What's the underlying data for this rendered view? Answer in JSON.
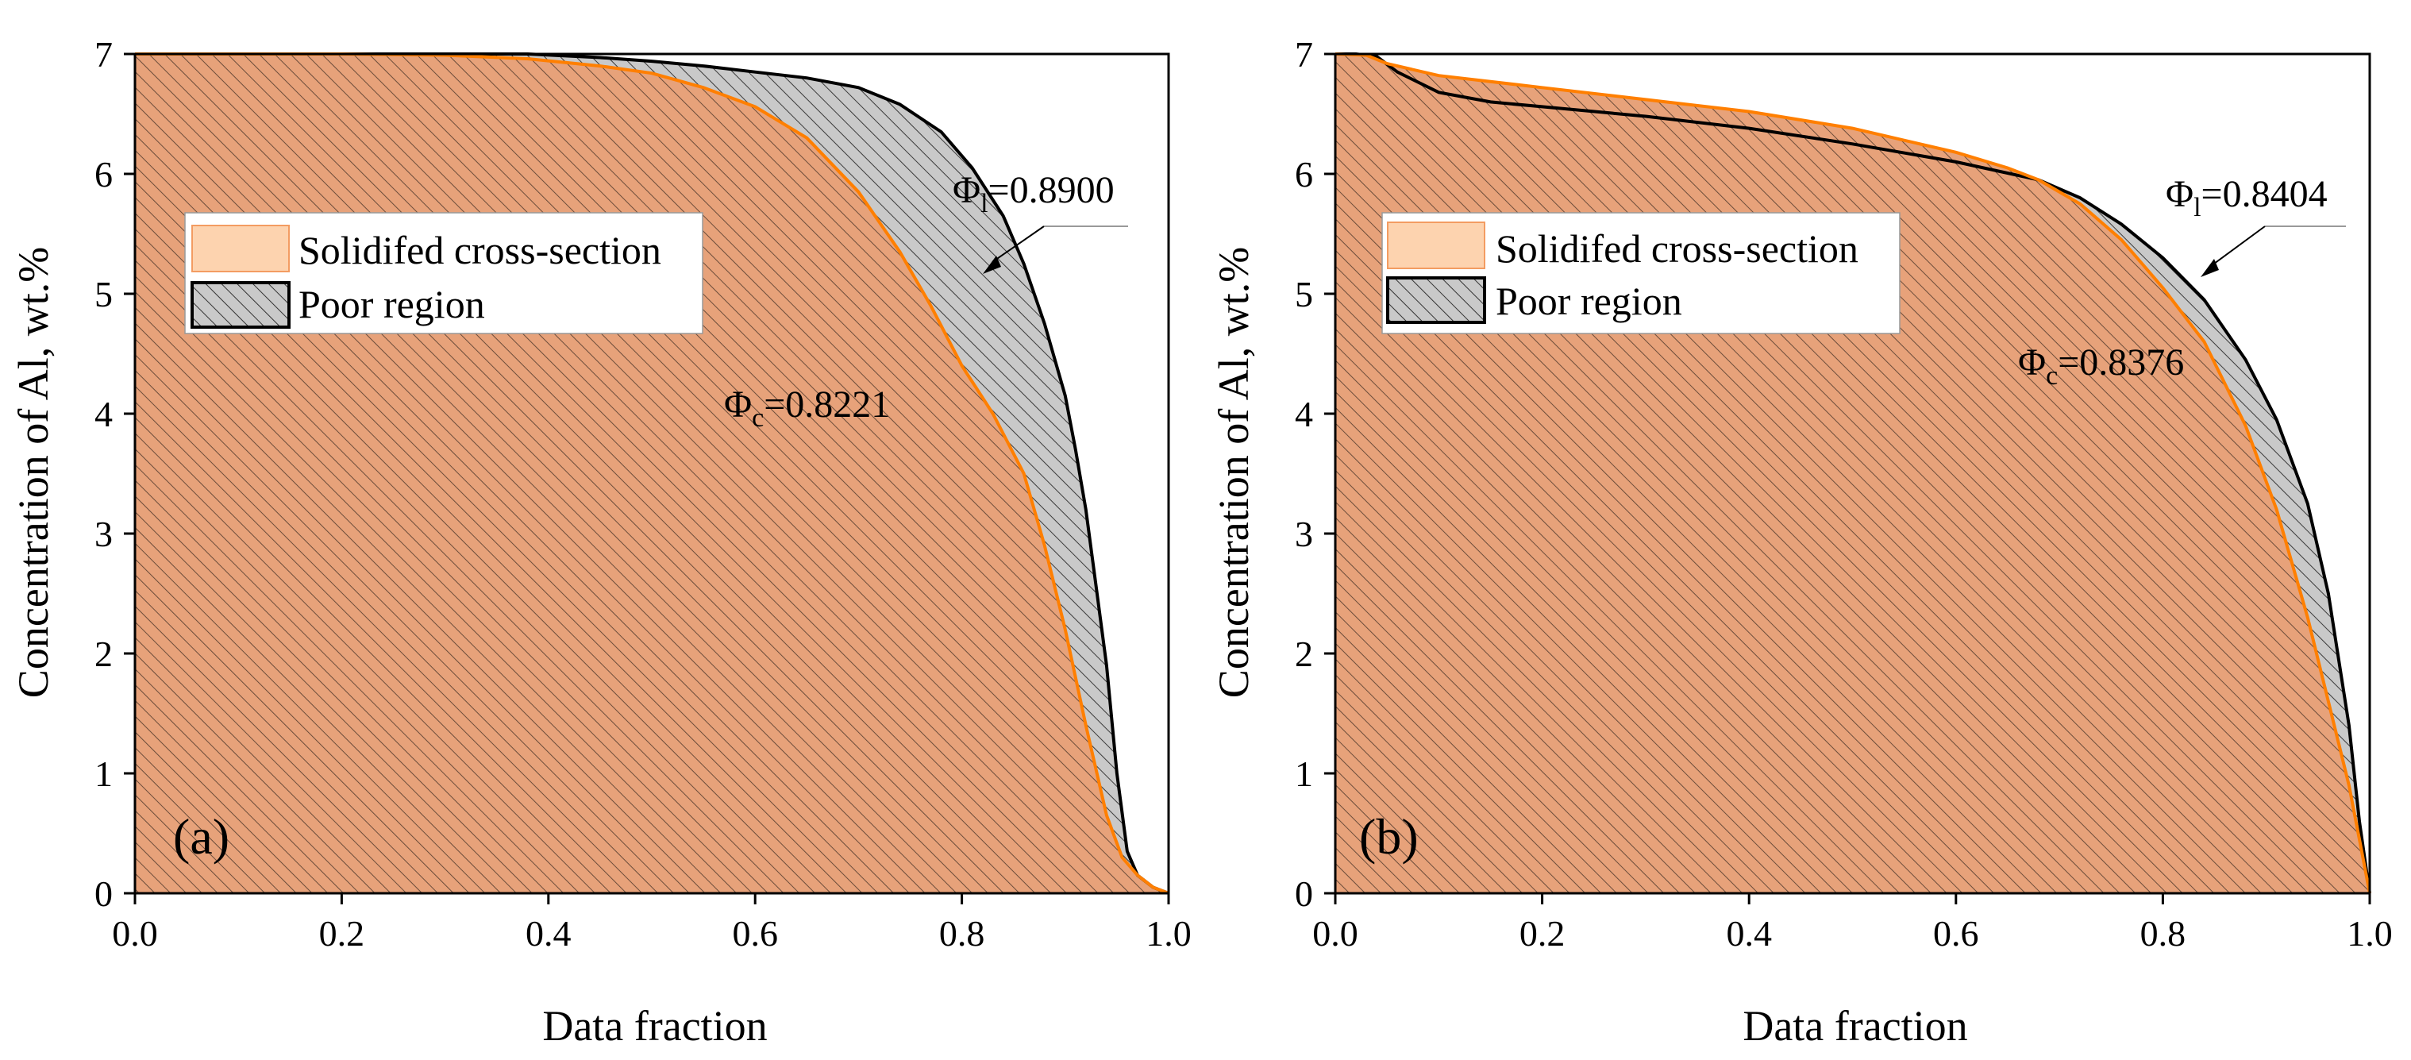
{
  "chart_data": [
    {
      "type": "area",
      "panel_label": "(a)",
      "xlabel": "Data fraction",
      "ylabel": "Concentration of Al, wt.%",
      "xlim": [
        0.0,
        1.0
      ],
      "ylim": [
        0,
        7
      ],
      "xticks": [
        "0.0",
        "0.2",
        "0.4",
        "0.6",
        "0.8",
        "1.0"
      ],
      "yticks": [
        "0",
        "1",
        "2",
        "3",
        "4",
        "5",
        "6",
        "7"
      ],
      "legend": {
        "position": "upper-left",
        "entries": [
          {
            "label": "Solidifed cross-section",
            "color": "#FDD3AF",
            "stroke": "#F39C62",
            "hatch": false
          },
          {
            "label": "Poor region",
            "color": "#C9C9C9",
            "stroke": "#000000",
            "hatch": true
          }
        ]
      },
      "annotations": [
        {
          "symbol": "Φ",
          "sub": "l",
          "text": "=0.8900",
          "x": 0.82,
          "y": 5.2
        },
        {
          "symbol": "Φ",
          "sub": "c",
          "text": "=0.8221",
          "x": 0.57,
          "y": 4.0
        }
      ],
      "series": [
        {
          "name": "Solidifed cross-section",
          "color": "#FF7F00",
          "fill": "#E7A27A",
          "x": [
            0,
            0.1,
            0.2,
            0.3,
            0.38,
            0.45,
            0.5,
            0.55,
            0.6,
            0.65,
            0.7,
            0.74,
            0.77,
            0.8,
            0.83,
            0.86,
            0.88,
            0.9,
            0.92,
            0.94,
            0.955,
            0.97,
            0.985,
            1.0
          ],
          "y": [
            7,
            7,
            7,
            6.99,
            6.96,
            6.9,
            6.84,
            6.72,
            6.56,
            6.3,
            5.85,
            5.35,
            4.9,
            4.4,
            4.0,
            3.5,
            2.9,
            2.2,
            1.4,
            0.65,
            0.3,
            0.15,
            0.05,
            0
          ]
        },
        {
          "name": "Poor region",
          "color": "#000000",
          "fill": "#C9C9C9",
          "x": [
            0,
            0.2,
            0.38,
            0.45,
            0.5,
            0.55,
            0.6,
            0.65,
            0.7,
            0.74,
            0.78,
            0.81,
            0.84,
            0.86,
            0.88,
            0.9,
            0.91,
            0.92,
            0.93,
            0.94,
            0.95,
            0.96,
            0.97,
            0.985,
            1.0
          ],
          "y": [
            7,
            7,
            7,
            6.97,
            6.94,
            6.9,
            6.85,
            6.8,
            6.72,
            6.58,
            6.35,
            6.05,
            5.65,
            5.25,
            4.75,
            4.15,
            3.7,
            3.2,
            2.55,
            1.9,
            1.0,
            0.35,
            0.15,
            0.05,
            0
          ]
        }
      ]
    },
    {
      "type": "area",
      "panel_label": "(b)",
      "xlabel": "Data fraction",
      "ylabel": "Concentration of Al, wt.%",
      "xlim": [
        0.0,
        1.0
      ],
      "ylim": [
        0,
        7
      ],
      "xticks": [
        "0.0",
        "0.2",
        "0.4",
        "0.6",
        "0.8",
        "1.0"
      ],
      "yticks": [
        "0",
        "1",
        "2",
        "3",
        "4",
        "5",
        "6",
        "7"
      ],
      "legend": {
        "position": "upper-left",
        "entries": [
          {
            "label": "Solidifed cross-section",
            "color": "#FDD3AF",
            "stroke": "#F39C62",
            "hatch": false
          },
          {
            "label": "Poor region",
            "color": "#C9C9C9",
            "stroke": "#000000",
            "hatch": true
          }
        ]
      },
      "annotations": [
        {
          "symbol": "Φ",
          "sub": "l",
          "text": "=0.8404",
          "x": 0.835,
          "y": 5.2
        },
        {
          "symbol": "Φ",
          "sub": "c",
          "text": "=0.8376",
          "x": 0.65,
          "y": 4.3
        }
      ],
      "series": [
        {
          "name": "Solidifed cross-section",
          "color": "#FF7F00",
          "fill": "#E7A27A",
          "x": [
            0,
            0.03,
            0.05,
            0.1,
            0.2,
            0.3,
            0.4,
            0.5,
            0.6,
            0.65,
            0.68,
            0.72,
            0.76,
            0.8,
            0.84,
            0.88,
            0.91,
            0.94,
            0.96,
            0.98,
            0.99,
            1.0
          ],
          "y": [
            7,
            6.99,
            6.92,
            6.82,
            6.72,
            6.62,
            6.52,
            6.38,
            6.18,
            6.05,
            5.95,
            5.75,
            5.45,
            5.05,
            4.6,
            3.9,
            3.2,
            2.3,
            1.6,
            0.9,
            0.45,
            0
          ]
        },
        {
          "name": "Poor region",
          "color": "#000000",
          "fill": "#C9C9C9",
          "x": [
            0,
            0.02,
            0.04,
            0.06,
            0.1,
            0.15,
            0.2,
            0.3,
            0.4,
            0.5,
            0.6,
            0.68,
            0.72,
            0.76,
            0.8,
            0.84,
            0.88,
            0.91,
            0.94,
            0.96,
            0.98,
            0.99,
            1.0
          ],
          "y": [
            7,
            7,
            6.98,
            6.85,
            6.68,
            6.6,
            6.56,
            6.48,
            6.38,
            6.25,
            6.1,
            5.95,
            5.8,
            5.58,
            5.3,
            4.95,
            4.45,
            3.95,
            3.25,
            2.5,
            1.4,
            0.6,
            0
          ]
        }
      ]
    }
  ]
}
